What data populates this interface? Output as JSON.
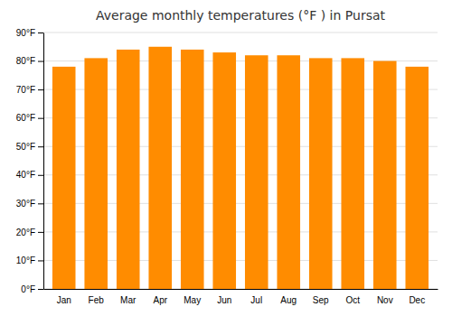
{
  "chart_data": {
    "type": "bar",
    "title": "Average monthly temperatures (°F ) in Pursat",
    "categories": [
      "Jan",
      "Feb",
      "Mar",
      "Apr",
      "May",
      "Jun",
      "Jul",
      "Aug",
      "Sep",
      "Oct",
      "Nov",
      "Dec"
    ],
    "values": [
      78,
      81,
      84,
      85,
      84,
      83,
      82,
      82,
      81,
      81,
      80,
      78
    ],
    "color": "#FF8C00",
    "ylim": [
      0,
      90
    ],
    "yticks": [
      {
        "value": 0,
        "label": "0°F"
      },
      {
        "value": 10,
        "label": "10°F"
      },
      {
        "value": 20,
        "label": "20°F"
      },
      {
        "value": 30,
        "label": "30°F"
      },
      {
        "value": 40,
        "label": "40°F"
      },
      {
        "value": 50,
        "label": "50°F"
      },
      {
        "value": 60,
        "label": "60°F"
      },
      {
        "value": 70,
        "label": "70°F"
      },
      {
        "value": 80,
        "label": "80°F"
      },
      {
        "value": 90,
        "label": "90°F"
      }
    ],
    "grid": true
  }
}
